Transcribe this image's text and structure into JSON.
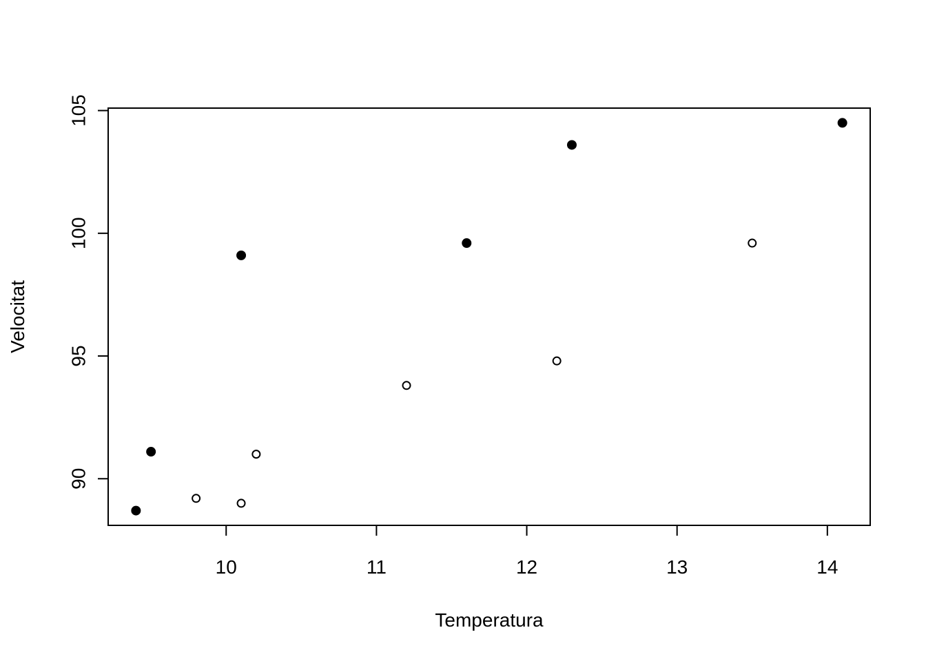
{
  "chart_data": {
    "type": "scatter",
    "title": "",
    "xlabel": "Temperatura",
    "ylabel": "Velocitat",
    "xlim": [
      9.215,
      14.285
    ],
    "ylim": [
      88.1,
      105.1
    ],
    "xticks": [
      10,
      11,
      12,
      13,
      14
    ],
    "yticks": [
      90,
      95,
      100,
      105
    ],
    "grid": false,
    "legend": "none",
    "series": [
      {
        "marker": "filled-circle",
        "color": "#000000",
        "points": [
          {
            "x": 9.4,
            "y": 88.7
          },
          {
            "x": 9.5,
            "y": 91.1
          },
          {
            "x": 10.1,
            "y": 99.1
          },
          {
            "x": 11.6,
            "y": 99.6
          },
          {
            "x": 12.3,
            "y": 103.6
          },
          {
            "x": 14.1,
            "y": 104.5
          }
        ]
      },
      {
        "marker": "open-circle",
        "color": "#000000",
        "points": [
          {
            "x": 9.8,
            "y": 89.2
          },
          {
            "x": 10.1,
            "y": 89.0
          },
          {
            "x": 10.2,
            "y": 91.0
          },
          {
            "x": 11.2,
            "y": 93.8
          },
          {
            "x": 12.2,
            "y": 94.8
          },
          {
            "x": 13.5,
            "y": 99.6
          }
        ]
      }
    ]
  }
}
